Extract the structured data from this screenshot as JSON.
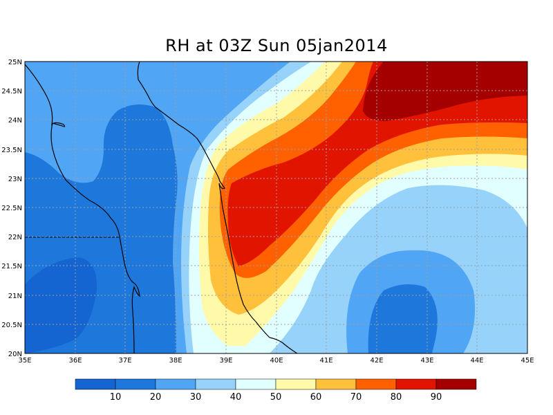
{
  "title": "RH at 03Z Sun 05jan2014",
  "map": {
    "lon_range": [
      35,
      45
    ],
    "lat_range": [
      20,
      25
    ],
    "lon_ticks": [
      "35E",
      "36E",
      "37E",
      "38E",
      "39E",
      "40E",
      "41E",
      "42E",
      "43E",
      "44E",
      "45E"
    ],
    "lat_ticks": [
      "20N",
      "20.5N",
      "21N",
      "21.5N",
      "22N",
      "22.5N",
      "23N",
      "23.5N",
      "24N",
      "24.5N",
      "25N"
    ],
    "grid": "dotted",
    "field": "RH"
  },
  "colorbar": {
    "colors": [
      "#1464d2",
      "#1e78dc",
      "#50a5f5",
      "#96d2fa",
      "#e1ffff",
      "#fffaaa",
      "#ffc03c",
      "#ff6000",
      "#e11400",
      "#a50000"
    ],
    "labels": [
      "10",
      "20",
      "30",
      "40",
      "50",
      "60",
      "70",
      "80",
      "90"
    ]
  }
}
